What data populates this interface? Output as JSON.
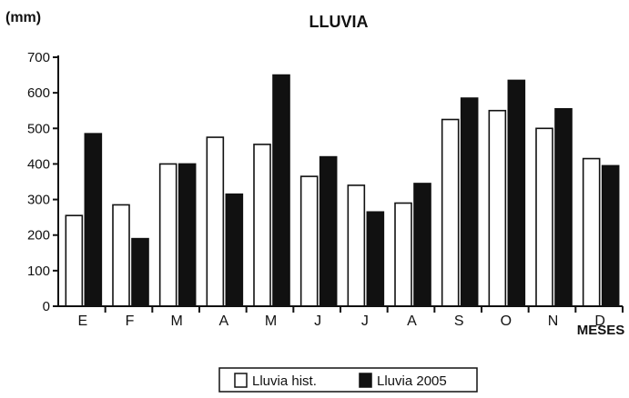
{
  "chart_data": {
    "type": "bar",
    "title": "LLUVIA",
    "ylabel": "(mm)",
    "xlabel": "MESES",
    "ylim": [
      0,
      700
    ],
    "yticks": [
      0,
      100,
      200,
      300,
      400,
      500,
      600,
      700
    ],
    "categories": [
      "E",
      "F",
      "M",
      "A",
      "M",
      "J",
      "J",
      "A",
      "S",
      "O",
      "N",
      "D"
    ],
    "series": [
      {
        "name": "Lluvia hist.",
        "color": "#ffffff",
        "values": [
          255,
          285,
          400,
          475,
          455,
          365,
          340,
          290,
          525,
          550,
          500,
          415
        ]
      },
      {
        "name": "Lluvia 2005",
        "color": "#111111",
        "values": [
          485,
          190,
          400,
          315,
          650,
          420,
          265,
          345,
          585,
          635,
          555,
          395
        ]
      }
    ],
    "grid": false,
    "legend_position": "bottom-center"
  }
}
